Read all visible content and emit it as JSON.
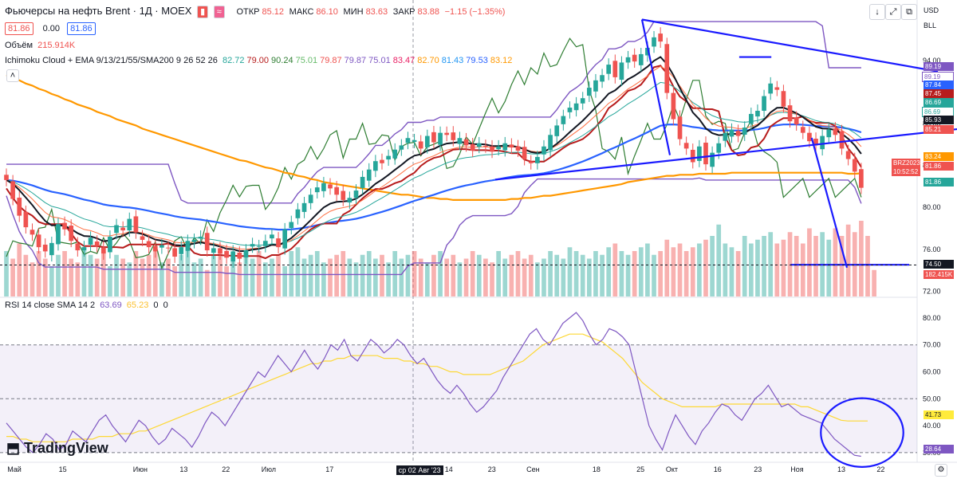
{
  "header": {
    "title": "Фьючерсы на нефть Brent · 1Д · MOEX",
    "ohlc": {
      "o_label": "ОТКР",
      "o": "85.12",
      "h_label": "МАКС",
      "h": "86.10",
      "l_label": "МИН",
      "l": "83.63",
      "c_label": "ЗАКР",
      "c": "83.88",
      "chg": "−1.15 (−1.35%)"
    },
    "sell_price": "81.86",
    "spread": "0.00",
    "buy_price": "81.86",
    "volume_label": "Объём",
    "volume_value": "215.914K",
    "indicator_label": "Ichimoku Cloud + EMA 9/13/21/55/SMA200 9 26 52 26",
    "indicator_values": [
      {
        "v": "82.72",
        "color": "#26a69a"
      },
      {
        "v": "79.00",
        "color": "#b71c1c"
      },
      {
        "v": "90.24",
        "color": "#2e7d32"
      },
      {
        "v": "75.01",
        "color": "#66bb6a"
      },
      {
        "v": "79.87",
        "color": "#ef5350"
      },
      {
        "v": "79.87",
        "color": "#7e57c2"
      },
      {
        "v": "75.01",
        "color": "#7e57c2"
      },
      {
        "v": "83.47",
        "color": "#e91e63"
      },
      {
        "v": "82.70",
        "color": "#ff9800"
      },
      {
        "v": "81.43",
        "color": "#2196f3"
      },
      {
        "v": "79.53",
        "color": "#2962ff"
      },
      {
        "v": "83.12",
        "color": "#ff9800"
      }
    ],
    "rsi_label": "RSI 14 close SMA 14 2",
    "rsi_value": "63.69",
    "rsi_sma": "65.23",
    "rsi_extra1": "0",
    "rsi_extra2": "0",
    "currency": "USD",
    "currency2": "BLL",
    "tradingview": "TradingView"
  },
  "toolbar": {
    "down": "↓",
    "expand": "⤢",
    "screenshot": "⧉",
    "gear": "⚙"
  },
  "chart_data": [
    {
      "type": "candlestick",
      "ylim": [
        71.5,
        99
      ],
      "y_ticks": [
        72,
        76,
        80,
        84,
        88,
        94
      ],
      "price_tags": [
        {
          "v": "89.19",
          "color": "#7e57c2"
        },
        {
          "v": "89.19",
          "color": "#ffffff",
          "text": "#7e57c2"
        },
        {
          "v": "87.84",
          "color": "#2962ff"
        },
        {
          "v": "87.45",
          "color": "#b71c1c"
        },
        {
          "v": "86.69",
          "color": "#26a69a"
        },
        {
          "v": "86.69",
          "color": "#ffffff",
          "text": "#26a69a"
        },
        {
          "v": "85.93",
          "color": "#131722"
        },
        {
          "v": "85.21",
          "color": "#ef5350"
        },
        {
          "v": "83.24",
          "color": "#ff9800"
        },
        {
          "v": "81.86",
          "color": "#ef5350"
        },
        {
          "v": "81.86",
          "color": "#26a69a"
        },
        {
          "v": "74.50",
          "color": "#131722"
        },
        {
          "v": "182.415K",
          "color": "#ef5350"
        }
      ],
      "last_label": "BRZ2023",
      "countdown": "10:52:52",
      "closes": [
        82.6,
        80.8,
        79.2,
        78.1,
        77.4,
        76.2,
        75.8,
        76.6,
        78.4,
        77.9,
        76.8,
        75.9,
        76.2,
        77.1,
        76.3,
        75.6,
        77.2,
        78.3,
        77.8,
        78.9,
        77.6,
        76.9,
        76.2,
        75.8,
        76.4,
        76.1,
        75.3,
        76.2,
        76.8,
        76.9,
        77.2,
        75.9,
        76.1,
        75.6,
        75.2,
        75.8,
        75.1,
        75.9,
        76.5,
        76.3,
        76.8,
        77.4,
        76.2,
        77.9,
        78.6,
        79.8,
        80.4,
        81.2,
        81.9,
        82.3,
        81.8,
        81.2,
        80.7,
        80.9,
        81.6,
        82.9,
        83.6,
        84.4,
        84.2,
        84.9,
        85.5,
        85.9,
        86.6,
        86.4,
        85.6,
        86.8,
        86.2,
        87.1,
        86.9,
        86.4,
        86.6,
        85.9,
        85.4,
        86.1,
        85.8,
        85.3,
        85.8,
        86.1,
        85.7,
        85.4,
        84.6,
        84.2,
        84.8,
        85.8,
        86.9,
        87.8,
        88.7,
        89.5,
        89.9,
        90.4,
        91.4,
        92.1,
        92.6,
        93.6,
        92.4,
        93.8,
        94.3,
        93.9,
        94.6,
        95.2,
        96.2,
        95.8,
        90.9,
        88.4,
        86.5,
        85.6,
        84.3,
        85.8,
        84.1,
        85.2,
        86.1,
        87.1,
        87.4,
        86.8,
        87.6,
        88.9,
        89.2,
        90.6,
        91.8,
        91.2,
        89.6,
        88.2,
        87.9,
        87.1,
        86.3,
        85.9,
        86.8,
        87.4,
        86.9,
        85.6,
        84.6,
        83.4,
        81.86
      ],
      "sma200": [
        92.6,
        92.3,
        92.1,
        91.8,
        91.6,
        91.3,
        91.1,
        90.8,
        90.6,
        90.3,
        90.1,
        89.8,
        89.6,
        89.4,
        89.1,
        88.9,
        88.7,
        88.4,
        88.2,
        88.0,
        87.8,
        87.5,
        87.3,
        87.1,
        86.9,
        86.7,
        86.5,
        86.3,
        86.1,
        85.9,
        85.7,
        85.5,
        85.3,
        85.1,
        84.9,
        84.7,
        84.5,
        84.4,
        84.2,
        84.0,
        83.8,
        83.7,
        83.5,
        83.3,
        83.2,
        83.0,
        82.9,
        82.7,
        82.6,
        82.4,
        82.3,
        82.2,
        82.1,
        82.0,
        81.9,
        81.8,
        81.7,
        81.6,
        81.5,
        81.4,
        81.3,
        81.2,
        81.2,
        81.1,
        81.0,
        80.9,
        80.9,
        80.8,
        80.8,
        80.7,
        80.7,
        80.7,
        80.7,
        80.7,
        80.7,
        80.7,
        80.7,
        80.7,
        80.8,
        80.8,
        80.9,
        80.9,
        81.0,
        81.1,
        81.1,
        81.2,
        81.3,
        81.4,
        81.5,
        81.6,
        81.7,
        81.8,
        81.9,
        82.0,
        82.1,
        82.2,
        82.4,
        82.5,
        82.6,
        82.7,
        82.8,
        82.9,
        83.0,
        83.0,
        83.1,
        83.1,
        83.1,
        83.2,
        83.2,
        83.2,
        83.2,
        83.2,
        83.3,
        83.3,
        83.3,
        83.3,
        83.3,
        83.3,
        83.3,
        83.3,
        83.3,
        83.3,
        83.3,
        83.3,
        83.3,
        83.3,
        83.3,
        83.3,
        83.3,
        83.3,
        83.2,
        83.2,
        83.24
      ],
      "volumes": [
        0.6,
        0.5,
        0.7,
        0.55,
        0.45,
        0.6,
        0.5,
        0.4,
        0.55,
        0.6,
        0.5,
        0.45,
        0.65,
        0.55,
        0.5,
        0.6,
        0.4,
        0.55,
        0.5,
        0.45,
        0.6,
        0.5,
        0.55,
        0.6,
        0.45,
        0.5,
        0.4,
        0.55,
        0.6,
        0.45,
        0.5,
        0.35,
        0.55,
        0.6,
        0.4,
        0.5,
        0.45,
        0.55,
        0.5,
        0.6,
        0.45,
        0.5,
        0.55,
        0.4,
        0.6,
        0.65,
        0.5,
        0.55,
        0.6,
        0.45,
        0.5,
        0.55,
        0.6,
        0.5,
        0.45,
        0.55,
        0.6,
        0.5,
        0.55,
        0.45,
        0.6,
        0.5,
        0.55,
        0.6,
        0.5,
        0.45,
        0.55,
        0.6,
        0.5,
        0.55,
        0.45,
        0.5,
        0.6,
        0.55,
        0.5,
        0.45,
        0.6,
        0.5,
        0.55,
        0.6,
        0.5,
        0.55,
        0.45,
        0.5,
        0.6,
        0.55,
        0.5,
        0.65,
        0.6,
        0.55,
        0.5,
        0.6,
        0.55,
        0.65,
        0.7,
        0.6,
        0.55,
        0.6,
        0.65,
        0.7,
        0.55,
        0.6,
        0.75,
        0.65,
        0.7,
        0.6,
        0.65,
        0.7,
        0.75,
        0.8,
        0.95,
        0.7,
        0.65,
        0.6,
        0.8,
        0.7,
        0.75,
        0.8,
        0.85,
        0.7,
        0.75,
        0.85,
        0.8,
        0.7,
        0.9,
        0.8,
        0.85,
        0.75,
        0.9,
        0.8,
        0.95,
        0.85,
        1.0,
        0.8,
        0.35
      ],
      "annotation_lines": [
        {
          "x1": 0.7,
          "y1": 0.04,
          "x2": 0.98,
          "y2": 0.22
        },
        {
          "x1": 0.54,
          "y1": 0.595,
          "x2": 1.0,
          "y2": 0.42
        },
        {
          "x1": 0.7,
          "y1": 0.04,
          "x2": 0.7,
          "y2": 0.51
        },
        {
          "x1": 0.885,
          "y1": 0.45,
          "x2": 0.885,
          "y2": 0.9
        },
        {
          "x1": 0.862,
          "y1": 0.89,
          "x2": 0.95,
          "y2": 0.89
        },
        {
          "x1": 0.806,
          "y1": 0.17,
          "x2": 0.806,
          "y2": 0.17
        }
      ]
    },
    {
      "type": "line",
      "name": "RSI",
      "ylim": [
        27,
        85
      ],
      "y_ticks": [
        80,
        70,
        60,
        50,
        40,
        30
      ],
      "overbought": 70,
      "oversold": 30,
      "midline": 50,
      "rsi_tags": [
        {
          "v": "41.73",
          "color": "#ffeb3b",
          "text": "#131722"
        },
        {
          "v": "28.64",
          "color": "#7e57c2"
        }
      ],
      "rsi": [
        41,
        38,
        35,
        32,
        30,
        33,
        37,
        35,
        31,
        33,
        38,
        36,
        34,
        38,
        42,
        44,
        40,
        37,
        34,
        38,
        42,
        40,
        36,
        33,
        35,
        39,
        37,
        35,
        32,
        36,
        41,
        45,
        43,
        40,
        44,
        48,
        52,
        56,
        60,
        58,
        62,
        66,
        63,
        60,
        64,
        68,
        64,
        61,
        65,
        70,
        68,
        72,
        66,
        64,
        68,
        72,
        70,
        67,
        69,
        72,
        70,
        66,
        63,
        65,
        61,
        57,
        54,
        52,
        55,
        52,
        48,
        45,
        47,
        50,
        53,
        58,
        62,
        66,
        70,
        74,
        76,
        72,
        70,
        74,
        78,
        80,
        82,
        79,
        74,
        70,
        72,
        76,
        75,
        73,
        70,
        60,
        50,
        40,
        35,
        31,
        38,
        44,
        40,
        36,
        33,
        38,
        41,
        45,
        48,
        47,
        44,
        42,
        46,
        50,
        52,
        55,
        51,
        47,
        48,
        46,
        44,
        43,
        42,
        41,
        38,
        35,
        33,
        31,
        29,
        28.64
      ],
      "sma": [
        36,
        36,
        35,
        35,
        34,
        34,
        34,
        34,
        34,
        34,
        35,
        35,
        35,
        35,
        36,
        36,
        36,
        37,
        37,
        37,
        38,
        38,
        39,
        40,
        41,
        42,
        43,
        44,
        45,
        46,
        47,
        48,
        49,
        50,
        51,
        52,
        53,
        54,
        55,
        56,
        57,
        58,
        59,
        60,
        61,
        62,
        63,
        63,
        64,
        64,
        65,
        65,
        66,
        66,
        66,
        66,
        66,
        65,
        65,
        65,
        64,
        64,
        63,
        63,
        62,
        62,
        61,
        60,
        60,
        59,
        59,
        59,
        59,
        59,
        60,
        61,
        62,
        63,
        64,
        66,
        68,
        70,
        71,
        72,
        73,
        74,
        74,
        74,
        73,
        72,
        71,
        69,
        67,
        65,
        62,
        59,
        56,
        54,
        52,
        50,
        49,
        48,
        47,
        47,
        47,
        47,
        47,
        47,
        48,
        48,
        48,
        48,
        48,
        48,
        48,
        48,
        48,
        48,
        48,
        48,
        47,
        47,
        46,
        45,
        44,
        43,
        42,
        41.73,
        41.73,
        41.73,
        41.73
      ],
      "annotation_circle": {
        "cx": 0.94,
        "cy": 0.82,
        "rx": 0.045,
        "ry": 0.11
      }
    }
  ],
  "x_axis": {
    "labels": [
      {
        "t": "Май",
        "x": 0.008
      },
      {
        "t": "15",
        "x": 0.064
      },
      {
        "t": "Июн",
        "x": 0.145
      },
      {
        "t": "13",
        "x": 0.196
      },
      {
        "t": "22",
        "x": 0.242
      },
      {
        "t": "Июл",
        "x": 0.285
      },
      {
        "t": "17",
        "x": 0.355
      },
      {
        "t": "ср 02 Авг '23",
        "x": 0.432,
        "hl": true
      },
      {
        "t": "14",
        "x": 0.485
      },
      {
        "t": "23",
        "x": 0.532
      },
      {
        "t": "Сен",
        "x": 0.574
      },
      {
        "t": "18",
        "x": 0.646
      },
      {
        "t": "25",
        "x": 0.694
      },
      {
        "t": "Окт",
        "x": 0.726
      },
      {
        "t": "16",
        "x": 0.778
      },
      {
        "t": "23",
        "x": 0.822
      },
      {
        "t": "Ноя",
        "x": 0.862
      },
      {
        "t": "13",
        "x": 0.913
      },
      {
        "t": "22",
        "x": 0.956
      }
    ]
  }
}
